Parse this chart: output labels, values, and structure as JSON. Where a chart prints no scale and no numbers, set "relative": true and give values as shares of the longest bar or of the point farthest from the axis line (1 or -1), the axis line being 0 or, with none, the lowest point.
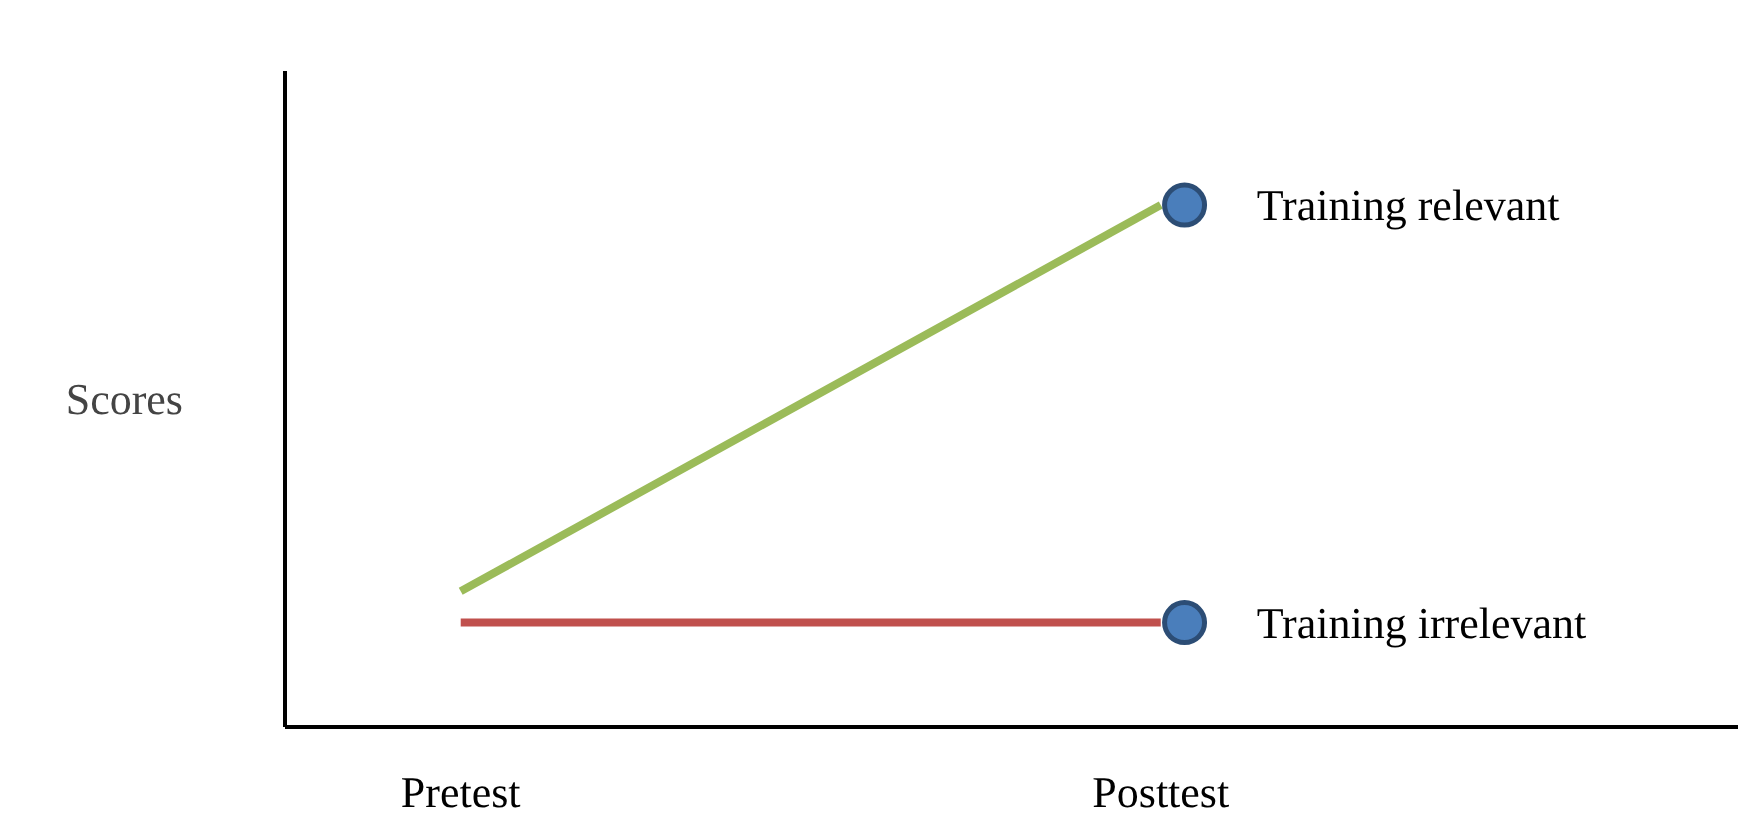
{
  "chart_data": {
    "type": "line",
    "relative": true,
    "ylabel": "Scores",
    "categories": [
      "Pretest",
      "Posttest"
    ],
    "marker": "circle",
    "grid": false,
    "series": [
      {
        "name": "Training relevant",
        "color": "#9bbb59",
        "values": [
          0.26,
          1
        ]
      },
      {
        "name": "Training irrelevant",
        "color": "#c0504d",
        "values": [
          0.2,
          0.2
        ]
      }
    ]
  }
}
